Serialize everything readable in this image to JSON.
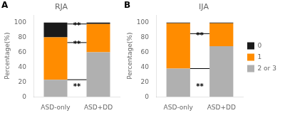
{
  "chart_data": [
    {
      "type": "bar",
      "title": "RJA",
      "label": "A",
      "categories": [
        "ASD-only",
        "ASD+DD"
      ],
      "series": [
        {
          "name": "2 or 3",
          "color": "#b0b0b0",
          "values": [
            23,
            60
          ]
        },
        {
          "name": "1",
          "color": "#FF8C00",
          "values": [
            57,
            38
          ]
        },
        {
          "name": "0",
          "color": "#1a1a1a",
          "values": [
            20,
            2
          ]
        }
      ],
      "stacked": true,
      "ylabel": "Percentage(%)",
      "ylim": [
        0,
        110
      ],
      "yticks": [
        0,
        20,
        40,
        60,
        80,
        100
      ],
      "grid": false,
      "legend": false,
      "annotations": [
        {
          "text": "**",
          "y": 18,
          "line_y": 23
        },
        {
          "text": "**",
          "y": 75,
          "line_y": 73
        },
        {
          "text": "**",
          "y": 100,
          "line_y": 98
        }
      ]
    },
    {
      "type": "bar",
      "title": "IJA",
      "label": "B",
      "categories": [
        "ASD-only",
        "ASD+DD"
      ],
      "series": [
        {
          "name": "2 or 3",
          "color": "#b0b0b0",
          "values": [
            38,
            68
          ]
        },
        {
          "name": "1",
          "color": "#FF8C00",
          "values": [
            61,
            31
          ]
        },
        {
          "name": "0",
          "color": "#1a1a1a",
          "values": [
            1,
            1
          ]
        }
      ],
      "stacked": true,
      "ylabel": "Percentage(%)",
      "ylim": [
        0,
        110
      ],
      "yticks": [
        0,
        20,
        40,
        60,
        80,
        100
      ],
      "grid": false,
      "legend": "right",
      "annotations": [
        {
          "text": "**",
          "y": 18,
          "line_y": 38
        },
        {
          "text": "**",
          "y": 87,
          "line_y": 85
        }
      ]
    }
  ]
}
